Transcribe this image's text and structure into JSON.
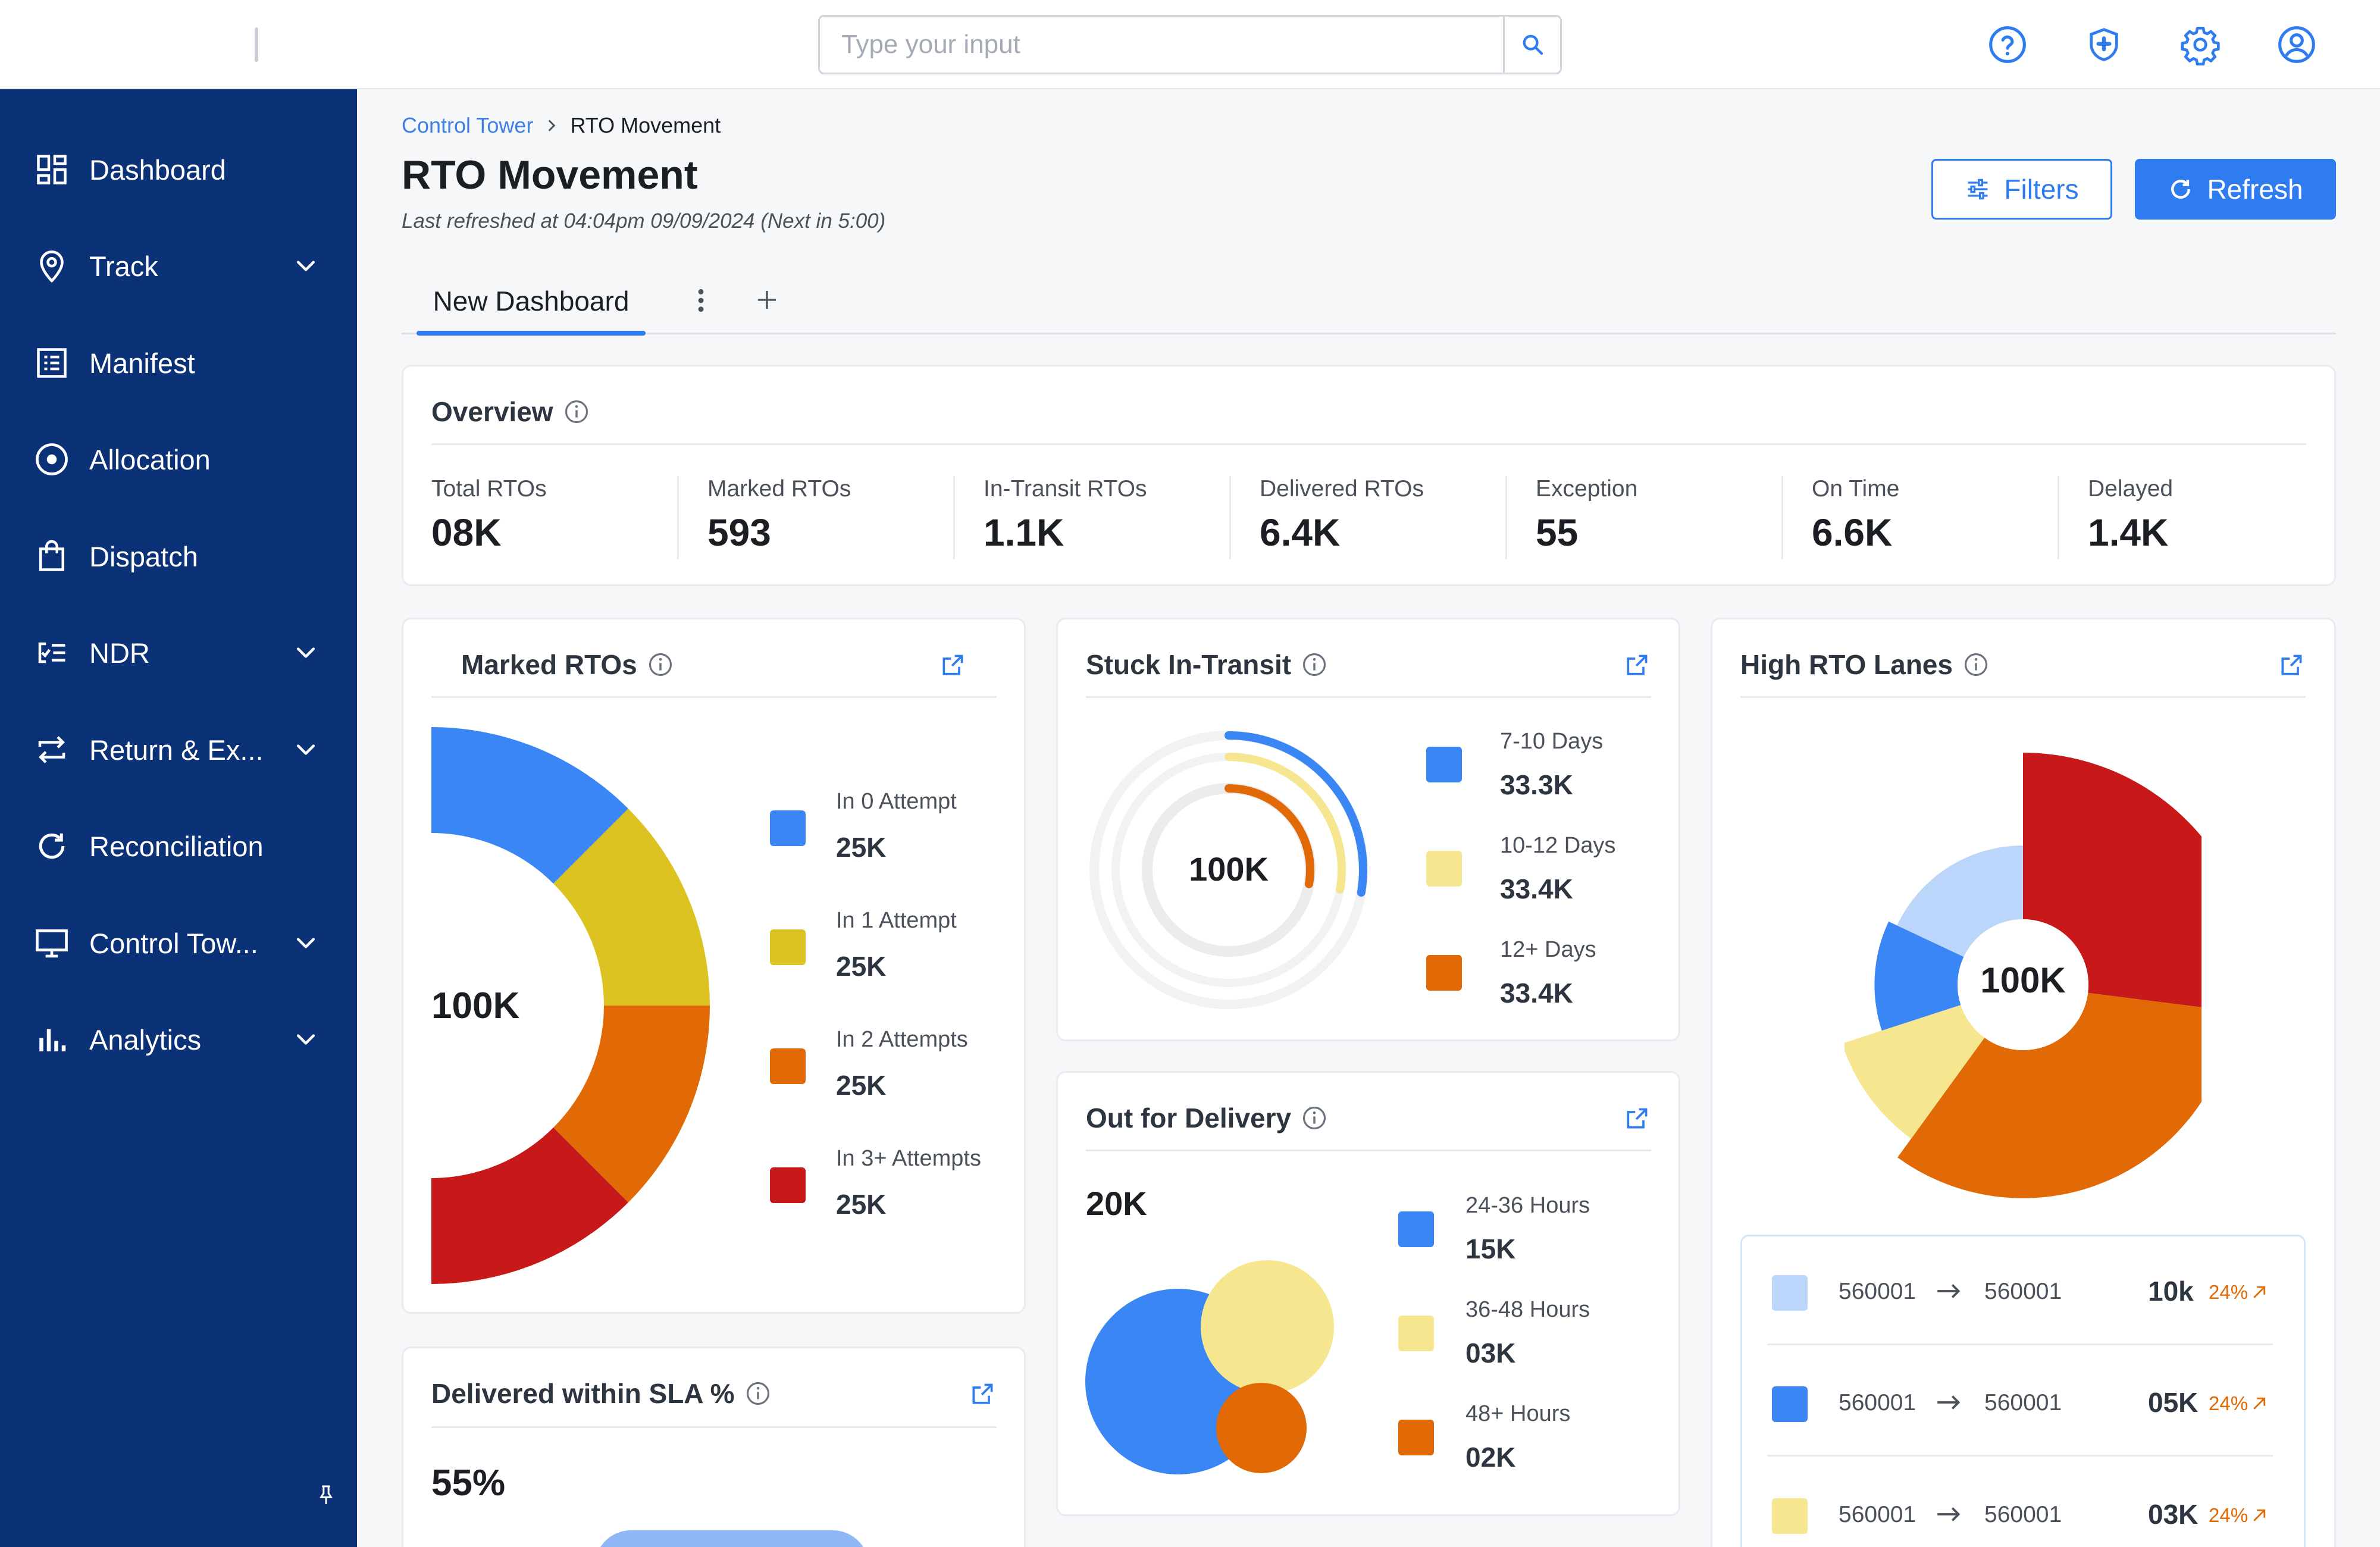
{
  "search": {
    "placeholder": "Type your input"
  },
  "topbar": {
    "icons": [
      "help-icon",
      "shield-icon",
      "gear-icon",
      "user-icon"
    ]
  },
  "sidebar": {
    "items": [
      {
        "label": "Dashboard",
        "icon": "dashboard-icon",
        "expandable": false
      },
      {
        "label": "Track",
        "icon": "location-pin-icon",
        "expandable": true
      },
      {
        "label": "Manifest",
        "icon": "list-icon",
        "expandable": false
      },
      {
        "label": "Allocation",
        "icon": "target-icon",
        "expandable": false
      },
      {
        "label": "Dispatch",
        "icon": "bag-icon",
        "expandable": false
      },
      {
        "label": "NDR",
        "icon": "ndr-list-icon",
        "expandable": true
      },
      {
        "label": "Return & Ex...",
        "icon": "swap-icon",
        "expandable": true
      },
      {
        "label": "Reconciliation",
        "icon": "refresh-icon",
        "expandable": false
      },
      {
        "label": "Control Tow...",
        "icon": "monitor-icon",
        "expandable": true
      },
      {
        "label": "Analytics",
        "icon": "bar-chart-icon",
        "expandable": true
      }
    ]
  },
  "breadcrumb": {
    "parent": "Control Tower",
    "current": "RTO Movement"
  },
  "page": {
    "title": "RTO Movement",
    "last_refreshed": "Last refreshed at 04:04pm 09/09/2024 (Next in 5:00)",
    "filters_label": "Filters",
    "refresh_label": "Refresh"
  },
  "tabs": {
    "active": "New Dashboard"
  },
  "overview": {
    "title": "Overview",
    "stats": [
      {
        "label": "Total RTOs",
        "value": "08K"
      },
      {
        "label": "Marked RTOs",
        "value": "593"
      },
      {
        "label": "In-Transit RTOs",
        "value": "1.1K"
      },
      {
        "label": "Delivered RTOs",
        "value": "6.4K"
      },
      {
        "label": "Exception",
        "value": "55"
      },
      {
        "label": "On Time",
        "value": "6.6K"
      },
      {
        "label": "Delayed",
        "value": "1.4K"
      }
    ]
  },
  "marked_rtos": {
    "title": "Marked RTOs",
    "center": "100K",
    "legend": [
      {
        "label": "In 0 Attempt",
        "value": "25K",
        "color": "#3a86f4"
      },
      {
        "label": "In 1 Attempt",
        "value": "25K",
        "color": "#dcc322"
      },
      {
        "label": "In 2 Attempts",
        "value": "25K",
        "color": "#e26a06"
      },
      {
        "label": "In 3+ Attempts",
        "value": "25K",
        "color": "#c8191a"
      }
    ]
  },
  "stuck_in_transit": {
    "title": "Stuck In-Transit",
    "center": "100K",
    "legend": [
      {
        "label": "7-10 Days",
        "value": "33.3K",
        "color": "#3a86f4"
      },
      {
        "label": "10-12 Days",
        "value": "33.4K",
        "color": "#f6e690"
      },
      {
        "label": "12+ Days",
        "value": "33.4K",
        "color": "#e26a06"
      }
    ]
  },
  "out_for_delivery": {
    "title": "Out for Delivery",
    "total": "20K",
    "legend": [
      {
        "label": "24-36 Hours",
        "value": "15K",
        "color": "#3a86f4"
      },
      {
        "label": "36-48 Hours",
        "value": "03K",
        "color": "#f6e690"
      },
      {
        "label": "48+ Hours",
        "value": "02K",
        "color": "#e26a06"
      }
    ]
  },
  "delivered_sla": {
    "title": "Delivered within SLA %",
    "value": "55%"
  },
  "high_rto_lanes": {
    "title": "High RTO Lanes",
    "center": "100K",
    "lanes": [
      {
        "from": "560001",
        "to": "560001",
        "value": "10k",
        "pct": "24%",
        "color": "#bcd6fb"
      },
      {
        "from": "560001",
        "to": "560001",
        "value": "05K",
        "pct": "24%",
        "color": "#3a86f4"
      },
      {
        "from": "560001",
        "to": "560001",
        "value": "03K",
        "pct": "24%",
        "color": "#f6e690"
      }
    ]
  },
  "chart_data": [
    {
      "type": "pie",
      "title": "Marked RTOs",
      "categories": [
        "In 0 Attempt",
        "In 1 Attempt",
        "In 2 Attempts",
        "In 3+ Attempts"
      ],
      "values": [
        25,
        25,
        25,
        25
      ],
      "unit": "K",
      "style": "half-donut"
    },
    {
      "type": "pie",
      "title": "Stuck In-Transit",
      "categories": [
        "7-10 Days",
        "10-12 Days",
        "12+ Days"
      ],
      "values": [
        33.3,
        33.4,
        33.4
      ],
      "unit": "K",
      "style": "radial-bars"
    },
    {
      "type": "scatter",
      "title": "Out for Delivery",
      "categories": [
        "24-36 Hours",
        "36-48 Hours",
        "48+ Hours"
      ],
      "values": [
        15,
        3,
        2
      ],
      "unit": "K",
      "style": "bubbles"
    },
    {
      "type": "pie",
      "title": "High RTO Lanes",
      "style": "polar-area",
      "segments": [
        {
          "fraction": 0.27,
          "relative_radius": 1.0,
          "color": "#c8191a"
        },
        {
          "fraction": 0.33,
          "relative_radius": 0.92,
          "color": "#e26a06"
        },
        {
          "fraction": 0.1,
          "relative_radius": 0.82,
          "color": "#f6e690"
        },
        {
          "fraction": 0.12,
          "relative_radius": 0.64,
          "color": "#3a86f4"
        },
        {
          "fraction": 0.18,
          "relative_radius": 0.6,
          "color": "#bcd6fb"
        }
      ]
    }
  ]
}
